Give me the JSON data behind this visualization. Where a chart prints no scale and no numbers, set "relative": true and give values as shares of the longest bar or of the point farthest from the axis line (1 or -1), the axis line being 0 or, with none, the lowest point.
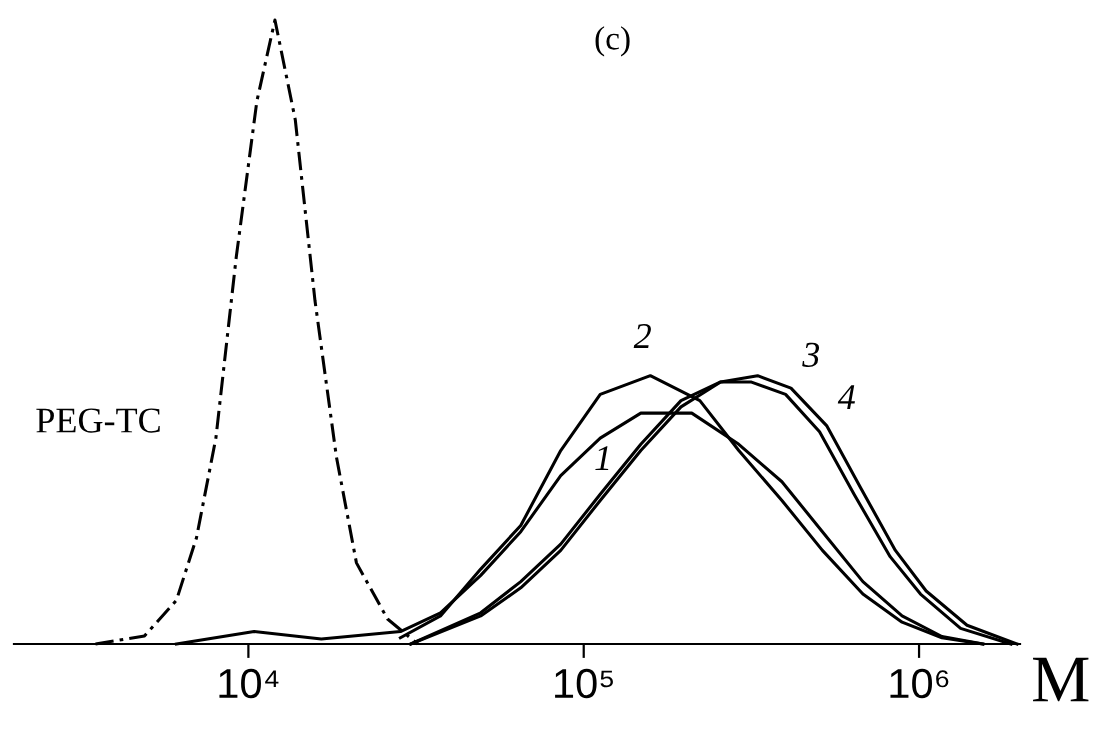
{
  "chart_data": {
    "type": "line",
    "title": "(c)",
    "xlabel": "M",
    "relative": true,
    "log": "x",
    "xlim": [
      2000,
      2000000
    ],
    "xticks": [
      {
        "value": 10000,
        "label": "10⁴"
      },
      {
        "value": 100000,
        "label": "10⁵"
      },
      {
        "value": 1000000,
        "label": "10⁶"
      }
    ],
    "grid": false,
    "legend": false,
    "marker": "none",
    "series": [
      {
        "name": "PEG-TC",
        "color": "#000000",
        "line_style": "dashdot",
        "x": [
          3500,
          4900,
          6100,
          7000,
          8000,
          9200,
          10600,
          12000,
          13800,
          15800,
          18300,
          21000,
          26000,
          32000
        ],
        "values": [
          0,
          0.013,
          0.07,
          0.17,
          0.33,
          0.62,
          0.87,
          1.0,
          0.84,
          0.55,
          0.3,
          0.13,
          0.04,
          0
        ]
      },
      {
        "name": "1",
        "color": "#000000",
        "line_style": "solid",
        "x": [
          6100,
          10400,
          16500,
          28400,
          37400,
          49300,
          64900,
          85400,
          112000,
          148000,
          210000,
          290000,
          390000,
          515000,
          680000,
          890000,
          1170000,
          1550000
        ],
        "values": [
          0,
          0.02,
          0.008,
          0.02,
          0.05,
          0.11,
          0.18,
          0.27,
          0.33,
          0.37,
          0.37,
          0.32,
          0.26,
          0.18,
          0.1,
          0.045,
          0.012,
          0
        ]
      },
      {
        "name": "2",
        "color": "#000000",
        "line_style": "solid",
        "x": [
          28400,
          37400,
          49300,
          64900,
          85400,
          112000,
          158000,
          222000,
          290000,
          390000,
          515000,
          680000,
          890000,
          1170000,
          1550000
        ],
        "values": [
          0.01,
          0.045,
          0.12,
          0.19,
          0.31,
          0.4,
          0.43,
          0.39,
          0.31,
          0.23,
          0.15,
          0.08,
          0.035,
          0.01,
          0
        ]
      },
      {
        "name": "3",
        "color": "#000000",
        "line_style": "solid",
        "x": [
          30500,
          49300,
          64900,
          85400,
          112000,
          148000,
          195000,
          256000,
          315000,
          400000,
          505000,
          640000,
          820000,
          1010000,
          1330000,
          1880000
        ],
        "values": [
          0,
          0.05,
          0.1,
          0.16,
          0.24,
          0.32,
          0.39,
          0.42,
          0.42,
          0.4,
          0.34,
          0.24,
          0.14,
          0.08,
          0.025,
          0
        ]
      },
      {
        "name": "4",
        "color": "#000000",
        "line_style": "solid",
        "x": [
          30500,
          49300,
          64900,
          85400,
          112000,
          148000,
          195000,
          256000,
          330000,
          415000,
          530000,
          670000,
          850000,
          1050000,
          1390000,
          1960000
        ],
        "values": [
          0,
          0.045,
          0.09,
          0.15,
          0.23,
          0.31,
          0.38,
          0.42,
          0.43,
          0.41,
          0.35,
          0.25,
          0.15,
          0.085,
          0.03,
          0
        ]
      }
    ]
  }
}
